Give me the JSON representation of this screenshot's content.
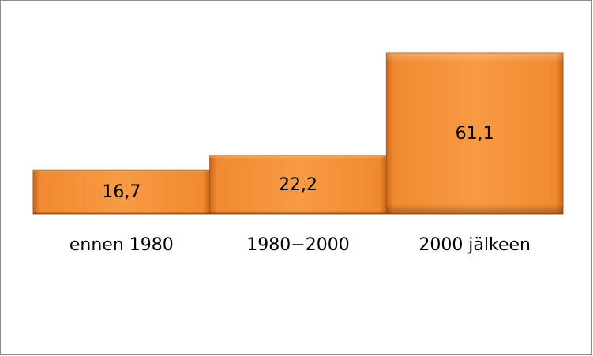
{
  "chart_data": {
    "type": "bar",
    "categories": [
      "ennen 1980",
      "1980−2000",
      "2000 jälkeen"
    ],
    "values": [
      16.7,
      22.2,
      61.1
    ],
    "value_labels": [
      "16,7",
      "22,2",
      "61,1"
    ],
    "color": "#f7963c"
  }
}
